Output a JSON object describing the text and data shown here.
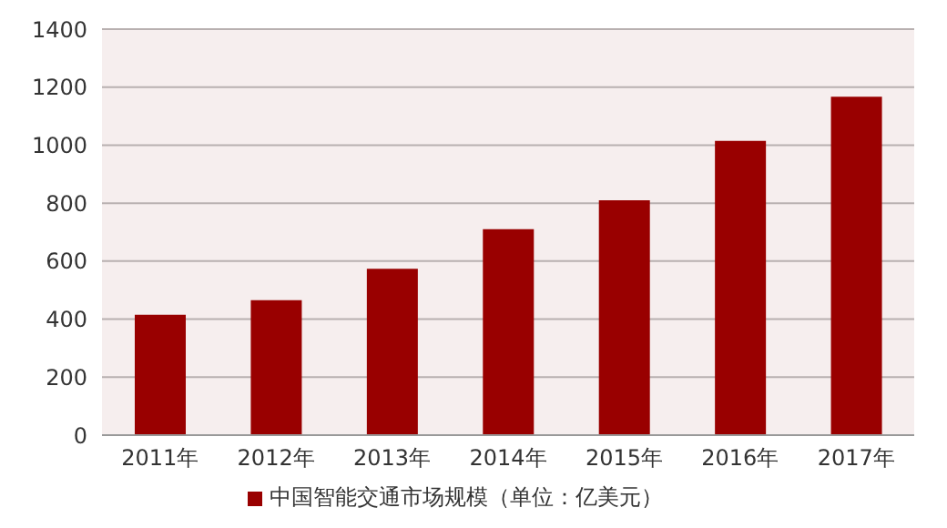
{
  "chart_data": {
    "type": "bar",
    "categories": [
      "2011年",
      "2012年",
      "2013年",
      "2014年",
      "2015年",
      "2016年",
      "2017年"
    ],
    "series": [
      {
        "name": "中国智能交通市场规模（单位：亿美元）",
        "color": "#990000",
        "values": [
          415,
          465,
          574,
          710,
          810,
          1015,
          1167
        ]
      }
    ],
    "ylim": [
      0,
      1400
    ],
    "yticks": [
      0,
      200,
      400,
      600,
      800,
      1000,
      1200,
      1400
    ],
    "grid": "y",
    "legend": "bottom"
  }
}
